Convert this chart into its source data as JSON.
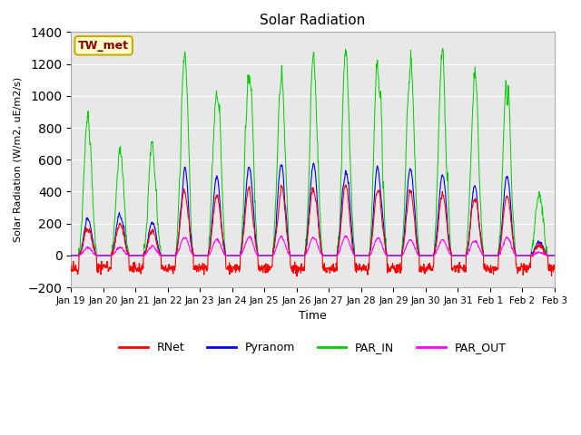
{
  "title": "Solar Radiation",
  "xlabel": "Time",
  "ylabel": "Solar Radiation (W/m2, uE/m2/s)",
  "ylim": [
    -200,
    1400
  ],
  "yticks": [
    -200,
    0,
    200,
    400,
    600,
    800,
    1000,
    1200,
    1400
  ],
  "annotation_text": "TW_met",
  "annotation_bg": "#ffffcc",
  "annotation_border": "#ccaa00",
  "annotation_text_color": "#8b0000",
  "series_colors": {
    "RNet": "#ff0000",
    "Pyranom": "#0000ff",
    "PAR_IN": "#00cc00",
    "PAR_OUT": "#ff00ff"
  },
  "bg_color": "#e8e8e8",
  "legend_entries": [
    "RNet",
    "Pyranom",
    "PAR_IN",
    "PAR_OUT"
  ],
  "tick_labels": [
    "Jan 19",
    "Jan 20",
    "Jan 21",
    "Jan 22",
    "Jan 23",
    "Jan 24",
    "Jan 25",
    "Jan 26",
    "Jan 27",
    "Jan 28",
    "Jan 29",
    "Jan 30",
    "Jan 31",
    "Feb 1",
    "Feb 2",
    "Feb 3"
  ],
  "figsize": [
    6.4,
    4.8
  ],
  "dpi": 100
}
